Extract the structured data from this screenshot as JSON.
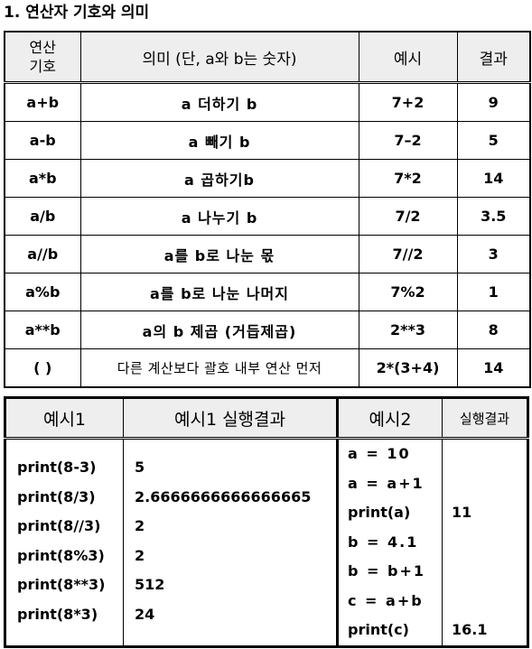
{
  "title": "1. 연산자 기호와 의미",
  "operators_table": {
    "headers": {
      "symbol_line1": "연산",
      "symbol_line2": "기호",
      "meaning": "의미 (단, a와 b는 숫자)",
      "example": "예시",
      "result": "결과"
    },
    "rows": [
      {
        "symbol": "a+b",
        "meaning": "a 더하기 b",
        "example": "7+2",
        "result": "9"
      },
      {
        "symbol": "a-b",
        "meaning": "a 빼기 b",
        "example": "7–2",
        "result": "5"
      },
      {
        "symbol": "a*b",
        "meaning": "a 곱하기b",
        "example": "7*2",
        "result": "14"
      },
      {
        "symbol": "a/b",
        "meaning": "a 나누기 b",
        "example": "7/2",
        "result": "3.5"
      },
      {
        "symbol": "a//b",
        "meaning": "a를 b로 나눈 몫",
        "example": "7//2",
        "result": "3"
      },
      {
        "symbol": "a%b",
        "meaning": "a를 b로 나눈 나머지",
        "example": "7%2",
        "result": "1"
      },
      {
        "symbol": "a**b",
        "meaning": "a의 b 제곱 (거듭제곱)",
        "example": "2**3",
        "result": "8"
      },
      {
        "symbol": "( )",
        "meaning": "다른 계산보다 괄호 내부 연산 먼저",
        "example": "2*(3+4)",
        "result": "14"
      }
    ]
  },
  "examples_table": {
    "headers": {
      "ex1": "예시1",
      "ex1_result": "예시1 실행결과",
      "ex2": "예시2",
      "ex2_result": "실행결과"
    },
    "ex1_code": [
      "print(8-3)",
      "print(8/3)",
      "print(8//3)",
      "print(8%3)",
      "print(8**3)",
      "print(8*3)"
    ],
    "ex1_output": [
      "5",
      "2.6666666666666665",
      "2",
      "2",
      "512",
      "24"
    ],
    "ex2_code": [
      "a = 10",
      "a = a+1",
      "print(a)",
      "b = 4.1",
      "b = b+1",
      "c = a+b",
      "print(c)"
    ],
    "ex2_output": [
      "",
      "",
      "11",
      "",
      "",
      "",
      "16.1"
    ]
  }
}
